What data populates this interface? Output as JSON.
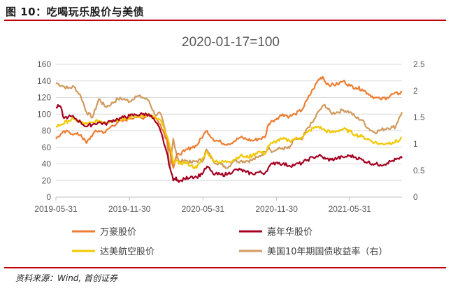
{
  "header": {
    "title": "图 10：吃喝玩乐股价与美债"
  },
  "footer": {
    "source": "资料来源：Wind, 首创证券"
  },
  "colors": {
    "wanhao": "#ED7D31",
    "jianianhua": "#A50021",
    "dameihangkong": "#F2C700",
    "ust10y": "#D19A5E",
    "rule": "#C00000"
  },
  "chart_data": {
    "type": "line",
    "title": "2020-01-17=100",
    "x_tick_labels": [
      "2019-05-31",
      "2019-11-30",
      "2020-05-31",
      "2020-11-30",
      "2021-05-31"
    ],
    "x_range": [
      "2019-05-31",
      "2021-10-08"
    ],
    "y_left": {
      "ticks": [
        0,
        20,
        40,
        60,
        80,
        100,
        120,
        140,
        160
      ],
      "range": [
        0,
        160
      ]
    },
    "y_right": {
      "ticks": [
        "0",
        "0.5",
        "1",
        "1.5",
        "2",
        "2.5"
      ],
      "range": [
        0,
        2.5
      ]
    },
    "grid": true,
    "legend_position": "bottom",
    "series": [
      {
        "name": "万豪股价",
        "axis": "left",
        "color": "#ED7D31",
        "points": [
          [
            "2019-05-31",
            70
          ],
          [
            "2019-06-15",
            77
          ],
          [
            "2019-07-01",
            79
          ],
          [
            "2019-07-15",
            76
          ],
          [
            "2019-08-01",
            75
          ],
          [
            "2019-08-15",
            65
          ],
          [
            "2019-09-01",
            77
          ],
          [
            "2019-09-15",
            80
          ],
          [
            "2019-10-01",
            78
          ],
          [
            "2019-10-15",
            85
          ],
          [
            "2019-11-01",
            90
          ],
          [
            "2019-11-15",
            92
          ],
          [
            "2019-12-01",
            95
          ],
          [
            "2019-12-15",
            97
          ],
          [
            "2020-01-01",
            95
          ],
          [
            "2020-01-17",
            100
          ],
          [
            "2020-02-01",
            96
          ],
          [
            "2020-02-15",
            88
          ],
          [
            "2020-03-01",
            70
          ],
          [
            "2020-03-10",
            55
          ],
          [
            "2020-03-18",
            35
          ],
          [
            "2020-03-25",
            48
          ],
          [
            "2020-04-01",
            52
          ],
          [
            "2020-04-15",
            55
          ],
          [
            "2020-05-01",
            60
          ],
          [
            "2020-05-15",
            62
          ],
          [
            "2020-06-01",
            75
          ],
          [
            "2020-06-10",
            80
          ],
          [
            "2020-06-25",
            70
          ],
          [
            "2020-07-15",
            66
          ],
          [
            "2020-08-01",
            64
          ],
          [
            "2020-08-15",
            67
          ],
          [
            "2020-09-01",
            72
          ],
          [
            "2020-09-15",
            70
          ],
          [
            "2020-10-01",
            68
          ],
          [
            "2020-10-15",
            70
          ],
          [
            "2020-11-01",
            72
          ],
          [
            "2020-11-10",
            88
          ],
          [
            "2020-11-20",
            92
          ],
          [
            "2020-12-01",
            95
          ],
          [
            "2020-12-15",
            100
          ],
          [
            "2021-01-01",
            97
          ],
          [
            "2021-01-15",
            100
          ],
          [
            "2021-02-01",
            105
          ],
          [
            "2021-02-15",
            118
          ],
          [
            "2021-03-01",
            130
          ],
          [
            "2021-03-15",
            142
          ],
          [
            "2021-03-25",
            145
          ],
          [
            "2021-04-01",
            138
          ],
          [
            "2021-04-15",
            135
          ],
          [
            "2021-05-01",
            136
          ],
          [
            "2021-05-15",
            140
          ],
          [
            "2021-06-01",
            134
          ],
          [
            "2021-06-15",
            132
          ],
          [
            "2021-07-01",
            130
          ],
          [
            "2021-07-15",
            125
          ],
          [
            "2021-08-01",
            120
          ],
          [
            "2021-08-15",
            118
          ],
          [
            "2021-09-01",
            120
          ],
          [
            "2021-09-15",
            124
          ],
          [
            "2021-10-01",
            125
          ],
          [
            "2021-10-08",
            127
          ]
        ]
      },
      {
        "name": "嘉年华股价",
        "axis": "left",
        "color": "#A50021",
        "points": [
          [
            "2019-05-31",
            108
          ],
          [
            "2019-06-10",
            110
          ],
          [
            "2019-06-20",
            95
          ],
          [
            "2019-07-01",
            97
          ],
          [
            "2019-07-15",
            96
          ],
          [
            "2019-08-01",
            90
          ],
          [
            "2019-08-15",
            85
          ],
          [
            "2019-09-01",
            88
          ],
          [
            "2019-09-15",
            90
          ],
          [
            "2019-10-01",
            88
          ],
          [
            "2019-10-15",
            92
          ],
          [
            "2019-11-01",
            94
          ],
          [
            "2019-11-15",
            96
          ],
          [
            "2019-12-01",
            98
          ],
          [
            "2019-12-15",
            99
          ],
          [
            "2020-01-01",
            100
          ],
          [
            "2020-01-17",
            100
          ],
          [
            "2020-02-01",
            92
          ],
          [
            "2020-02-15",
            80
          ],
          [
            "2020-03-01",
            55
          ],
          [
            "2020-03-10",
            35
          ],
          [
            "2020-03-18",
            20
          ],
          [
            "2020-03-25",
            24
          ],
          [
            "2020-04-01",
            18
          ],
          [
            "2020-04-15",
            22
          ],
          [
            "2020-05-01",
            25
          ],
          [
            "2020-05-15",
            24
          ],
          [
            "2020-06-01",
            30
          ],
          [
            "2020-06-10",
            37
          ],
          [
            "2020-06-25",
            28
          ],
          [
            "2020-07-15",
            27
          ],
          [
            "2020-08-01",
            28
          ],
          [
            "2020-08-15",
            32
          ],
          [
            "2020-09-01",
            33
          ],
          [
            "2020-09-15",
            30
          ],
          [
            "2020-10-01",
            28
          ],
          [
            "2020-10-15",
            30
          ],
          [
            "2020-11-01",
            29
          ],
          [
            "2020-11-10",
            36
          ],
          [
            "2020-11-20",
            40
          ],
          [
            "2020-12-01",
            42
          ],
          [
            "2020-12-15",
            40
          ],
          [
            "2021-01-01",
            38
          ],
          [
            "2021-01-15",
            39
          ],
          [
            "2021-02-01",
            41
          ],
          [
            "2021-02-15",
            45
          ],
          [
            "2021-03-01",
            48
          ],
          [
            "2021-03-15",
            50
          ],
          [
            "2021-03-25",
            48
          ],
          [
            "2021-04-01",
            46
          ],
          [
            "2021-04-15",
            45
          ],
          [
            "2021-05-01",
            47
          ],
          [
            "2021-05-15",
            48
          ],
          [
            "2021-06-01",
            50
          ],
          [
            "2021-06-15",
            48
          ],
          [
            "2021-07-01",
            45
          ],
          [
            "2021-07-15",
            42
          ],
          [
            "2021-08-01",
            40
          ],
          [
            "2021-08-15",
            39
          ],
          [
            "2021-09-01",
            41
          ],
          [
            "2021-09-15",
            44
          ],
          [
            "2021-10-01",
            46
          ],
          [
            "2021-10-08",
            47
          ]
        ]
      },
      {
        "name": "达美航空股价",
        "axis": "left",
        "color": "#F2C700",
        "points": [
          [
            "2019-05-31",
            85
          ],
          [
            "2019-06-15",
            88
          ],
          [
            "2019-07-01",
            92
          ],
          [
            "2019-07-15",
            94
          ],
          [
            "2019-08-01",
            90
          ],
          [
            "2019-08-15",
            88
          ],
          [
            "2019-09-01",
            90
          ],
          [
            "2019-09-15",
            92
          ],
          [
            "2019-10-01",
            90
          ],
          [
            "2019-10-15",
            92
          ],
          [
            "2019-11-01",
            93
          ],
          [
            "2019-11-15",
            95
          ],
          [
            "2019-12-01",
            96
          ],
          [
            "2019-12-15",
            97
          ],
          [
            "2020-01-01",
            98
          ],
          [
            "2020-01-17",
            100
          ],
          [
            "2020-02-01",
            95
          ],
          [
            "2020-02-15",
            93
          ],
          [
            "2020-03-01",
            75
          ],
          [
            "2020-03-10",
            60
          ],
          [
            "2020-03-18",
            42
          ],
          [
            "2020-03-25",
            45
          ],
          [
            "2020-04-01",
            40
          ],
          [
            "2020-04-15",
            42
          ],
          [
            "2020-05-01",
            38
          ],
          [
            "2020-05-15",
            35
          ],
          [
            "2020-06-01",
            48
          ],
          [
            "2020-06-10",
            55
          ],
          [
            "2020-06-25",
            45
          ],
          [
            "2020-07-15",
            42
          ],
          [
            "2020-08-01",
            43
          ],
          [
            "2020-08-15",
            45
          ],
          [
            "2020-09-01",
            50
          ],
          [
            "2020-09-15",
            48
          ],
          [
            "2020-10-01",
            50
          ],
          [
            "2020-10-15",
            55
          ],
          [
            "2020-11-01",
            52
          ],
          [
            "2020-11-10",
            62
          ],
          [
            "2020-11-20",
            65
          ],
          [
            "2020-12-01",
            68
          ],
          [
            "2020-12-15",
            70
          ],
          [
            "2021-01-01",
            68
          ],
          [
            "2021-01-15",
            70
          ],
          [
            "2021-02-01",
            72
          ],
          [
            "2021-02-15",
            78
          ],
          [
            "2021-03-01",
            83
          ],
          [
            "2021-03-15",
            85
          ],
          [
            "2021-03-25",
            82
          ],
          [
            "2021-04-01",
            80
          ],
          [
            "2021-04-15",
            78
          ],
          [
            "2021-05-01",
            80
          ],
          [
            "2021-05-15",
            82
          ],
          [
            "2021-06-01",
            79
          ],
          [
            "2021-06-15",
            75
          ],
          [
            "2021-07-01",
            73
          ],
          [
            "2021-07-15",
            70
          ],
          [
            "2021-08-01",
            66
          ],
          [
            "2021-08-15",
            64
          ],
          [
            "2021-09-01",
            65
          ],
          [
            "2021-09-15",
            66
          ],
          [
            "2021-10-01",
            68
          ],
          [
            "2021-10-08",
            72
          ]
        ]
      },
      {
        "name": "美国10年期国债收益率（右）",
        "axis": "right",
        "color": "#D19A5E",
        "points": [
          [
            "2019-05-31",
            2.15
          ],
          [
            "2019-06-15",
            2.1
          ],
          [
            "2019-06-30",
            2.05
          ],
          [
            "2019-07-15",
            2.08
          ],
          [
            "2019-08-01",
            1.9
          ],
          [
            "2019-08-15",
            1.6
          ],
          [
            "2019-08-30",
            1.5
          ],
          [
            "2019-09-15",
            1.85
          ],
          [
            "2019-10-01",
            1.7
          ],
          [
            "2019-10-15",
            1.75
          ],
          [
            "2019-11-01",
            1.85
          ],
          [
            "2019-11-15",
            1.85
          ],
          [
            "2019-12-01",
            1.8
          ],
          [
            "2019-12-15",
            1.9
          ],
          [
            "2020-01-01",
            1.88
          ],
          [
            "2020-01-17",
            1.82
          ],
          [
            "2020-02-01",
            1.55
          ],
          [
            "2020-02-15",
            1.58
          ],
          [
            "2020-03-01",
            1.15
          ],
          [
            "2020-03-09",
            0.55
          ],
          [
            "2020-03-18",
            1.1
          ],
          [
            "2020-03-25",
            0.85
          ],
          [
            "2020-04-01",
            0.65
          ],
          [
            "2020-04-15",
            0.7
          ],
          [
            "2020-05-01",
            0.65
          ],
          [
            "2020-05-15",
            0.68
          ],
          [
            "2020-06-01",
            0.7
          ],
          [
            "2020-06-08",
            0.9
          ],
          [
            "2020-06-25",
            0.68
          ],
          [
            "2020-07-15",
            0.62
          ],
          [
            "2020-08-01",
            0.55
          ],
          [
            "2020-08-15",
            0.7
          ],
          [
            "2020-09-01",
            0.68
          ],
          [
            "2020-09-15",
            0.68
          ],
          [
            "2020-10-01",
            0.7
          ],
          [
            "2020-10-15",
            0.75
          ],
          [
            "2020-11-01",
            0.85
          ],
          [
            "2020-11-10",
            0.95
          ],
          [
            "2020-11-20",
            0.85
          ],
          [
            "2020-12-01",
            0.9
          ],
          [
            "2020-12-15",
            0.92
          ],
          [
            "2021-01-01",
            0.92
          ],
          [
            "2021-01-15",
            1.1
          ],
          [
            "2021-02-01",
            1.08
          ],
          [
            "2021-02-15",
            1.3
          ],
          [
            "2021-03-01",
            1.42
          ],
          [
            "2021-03-15",
            1.62
          ],
          [
            "2021-03-30",
            1.74
          ],
          [
            "2021-04-15",
            1.58
          ],
          [
            "2021-05-01",
            1.6
          ],
          [
            "2021-05-15",
            1.64
          ],
          [
            "2021-06-01",
            1.6
          ],
          [
            "2021-06-15",
            1.5
          ],
          [
            "2021-07-01",
            1.45
          ],
          [
            "2021-07-15",
            1.3
          ],
          [
            "2021-08-01",
            1.22
          ],
          [
            "2021-08-15",
            1.26
          ],
          [
            "2021-09-01",
            1.3
          ],
          [
            "2021-09-15",
            1.32
          ],
          [
            "2021-09-22",
            1.32
          ],
          [
            "2021-10-01",
            1.5
          ],
          [
            "2021-10-08",
            1.6
          ]
        ]
      }
    ]
  }
}
